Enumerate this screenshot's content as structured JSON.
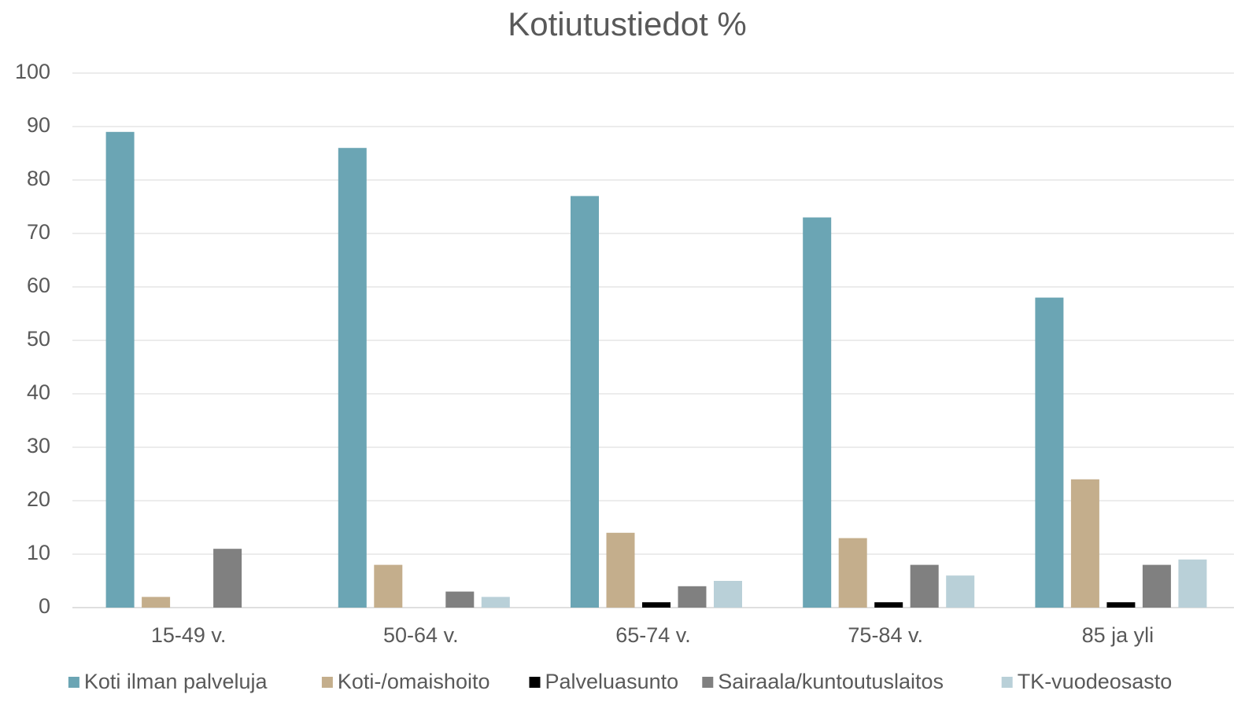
{
  "chart_data": {
    "type": "bar",
    "title": "Kotiutustiedot %",
    "categories": [
      "15-49 v.",
      "50-64 v.",
      "65-74 v.",
      "75-84 v.",
      "85 ja yli"
    ],
    "series": [
      {
        "name": "Koti ilman palveluja",
        "color": "#6ba5b4",
        "values": [
          89,
          86,
          77,
          73,
          58
        ]
      },
      {
        "name": "Koti-/omaishoito",
        "color": "#c4ae8c",
        "values": [
          2,
          8,
          14,
          13,
          24
        ]
      },
      {
        "name": "Palveluasunto",
        "color": "#000000",
        "values": [
          0,
          0,
          1,
          1,
          1
        ]
      },
      {
        "name": "Sairaala/kuntoutuslaitos",
        "color": "#808080",
        "values": [
          11,
          3,
          4,
          8,
          8
        ]
      },
      {
        "name": "TK-vuodeosasto",
        "color": "#b9d0d8",
        "values": [
          0,
          2,
          5,
          6,
          9
        ]
      }
    ],
    "ylim": [
      0,
      100
    ],
    "yticks": [
      0,
      10,
      20,
      30,
      40,
      50,
      60,
      70,
      80,
      90,
      100
    ],
    "grid": true
  }
}
